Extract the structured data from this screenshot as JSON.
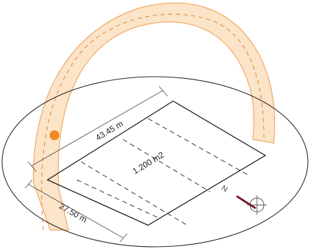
{
  "diagram": {
    "area_label": "1.200 m2",
    "length_label": "43.45 m",
    "width_label": "27.50 m",
    "north_letter": "N",
    "colors": {
      "sun_band_fill": "#fbe3c6",
      "sun_band_stroke": "#f0a45a",
      "sun_marker": "#f08a24",
      "ground_line": "#2a2a2a",
      "compass_needle": "#7a1a2a"
    },
    "icons": {
      "sun": "sun-marker-icon",
      "compass": "north-compass-icon"
    }
  }
}
